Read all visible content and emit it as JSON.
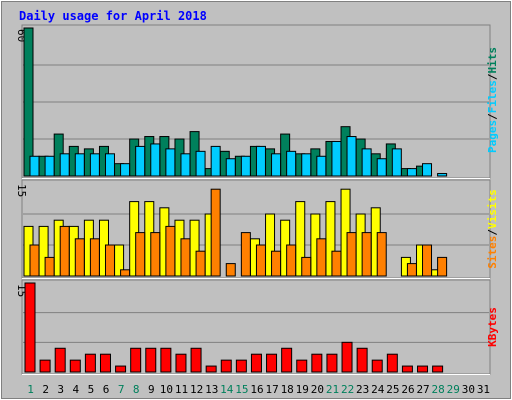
{
  "chart_data": {
    "type": "bar",
    "title": "Daily usage for April 2018",
    "categories": [
      "1",
      "2",
      "3",
      "4",
      "5",
      "6",
      "7",
      "8",
      "9",
      "10",
      "11",
      "12",
      "13",
      "14",
      "15",
      "16",
      "17",
      "18",
      "19",
      "20",
      "21",
      "22",
      "23",
      "24",
      "25",
      "26",
      "27",
      "28",
      "29",
      "30",
      "31"
    ],
    "weekend_days": [
      "1",
      "7",
      "8",
      "14",
      "15",
      "21",
      "22",
      "28",
      "29"
    ],
    "panels": [
      {
        "ymax_label": "60",
        "ylim": [
          0,
          60
        ],
        "legend": [
          "Pages",
          "Files",
          "Hits"
        ],
        "series": [
          {
            "name": "Hits",
            "color": "#00805c",
            "values": [
              60,
              8,
              17,
              12,
              11,
              12,
              5,
              15,
              16,
              16,
              15,
              18,
              3,
              10,
              8,
              12,
              11,
              17,
              9,
              11,
              14,
              20,
              15,
              9,
              13,
              3,
              4,
              0,
              0,
              0,
              0
            ]
          },
          {
            "name": "Files",
            "color": "#00ccff",
            "values": [
              8,
              8,
              9,
              9,
              9,
              9,
              5,
              12,
              13,
              11,
              9,
              10,
              12,
              7,
              8,
              12,
              9,
              10,
              9,
              8,
              14,
              16,
              11,
              7,
              11,
              3,
              5,
              1,
              0,
              0,
              0
            ]
          },
          {
            "name": "Pages",
            "color": "#00ccff",
            "values": [
              0,
              0,
              0,
              0,
              0,
              0,
              0,
              0,
              0,
              0,
              0,
              0,
              0,
              0,
              0,
              0,
              0,
              0,
              0,
              0,
              0,
              0,
              0,
              0,
              0,
              0,
              0,
              0,
              0,
              0,
              0
            ]
          }
        ]
      },
      {
        "ymax_label": "15",
        "ylim": [
          0,
          15
        ],
        "legend": [
          "Sites",
          "Visits"
        ],
        "series": [
          {
            "name": "Visits",
            "color": "#ffff00",
            "values": [
              8,
              8,
              9,
              8,
              9,
              9,
              5,
              12,
              12,
              11,
              9,
              9,
              10,
              0,
              0,
              6,
              10,
              9,
              12,
              10,
              12,
              14,
              10,
              11,
              0,
              3,
              5,
              1,
              0,
              0,
              0
            ]
          },
          {
            "name": "Sites",
            "color": "#ff8000",
            "values": [
              5,
              3,
              8,
              6,
              6,
              5,
              1,
              7,
              7,
              8,
              6,
              4,
              14,
              2,
              7,
              5,
              4,
              5,
              3,
              6,
              4,
              7,
              7,
              7,
              0,
              2,
              5,
              3,
              0,
              0,
              0
            ]
          }
        ]
      },
      {
        "ymax_label": "15",
        "ylim": [
          0,
          15
        ],
        "legend": [
          "KBytes"
        ],
        "series": [
          {
            "name": "KBytes",
            "color": "#ff0000",
            "values": [
              15,
              2,
              4,
              2,
              3,
              3,
              1,
              4,
              4,
              4,
              3,
              4,
              1,
              2,
              2,
              3,
              3,
              4,
              2,
              3,
              3,
              5,
              4,
              2,
              3,
              1,
              1,
              1,
              0,
              0,
              0
            ]
          }
        ]
      }
    ]
  },
  "colors": {
    "background": "#c0c0c0",
    "title": "#0000ff",
    "weekend_label": "#00805c",
    "weekday_label": "#000000"
  }
}
